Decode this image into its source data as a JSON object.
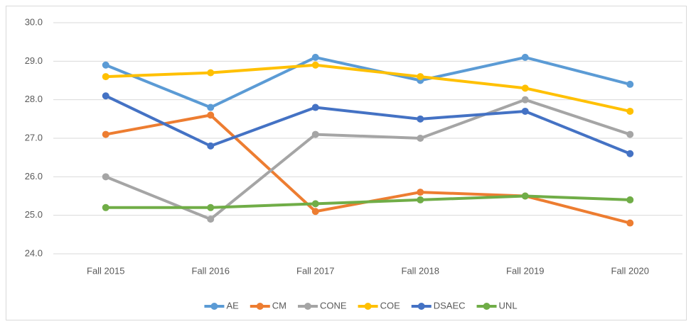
{
  "chart_data": {
    "type": "line",
    "categories": [
      "Fall 2015",
      "Fall 2016",
      "Fall 2017",
      "Fall 2018",
      "Fall 2019",
      "Fall 2020"
    ],
    "series": [
      {
        "name": "AE",
        "color": "#5B9BD5",
        "values": [
          28.9,
          27.8,
          29.1,
          28.5,
          29.1,
          28.4
        ]
      },
      {
        "name": "CM",
        "color": "#ED7D31",
        "values": [
          27.1,
          27.6,
          25.1,
          25.6,
          25.5,
          24.8
        ]
      },
      {
        "name": "CONE",
        "color": "#A5A5A5",
        "values": [
          26.0,
          24.9,
          27.1,
          27.0,
          28.0,
          27.1
        ]
      },
      {
        "name": "COE",
        "color": "#FFC000",
        "values": [
          28.6,
          28.7,
          28.9,
          28.6,
          28.3,
          27.7
        ]
      },
      {
        "name": "DSAEC",
        "color": "#4472C4",
        "values": [
          28.1,
          26.8,
          27.8,
          27.5,
          27.7,
          26.6
        ]
      },
      {
        "name": "UNL",
        "color": "#70AD47",
        "values": [
          25.2,
          25.2,
          25.3,
          25.4,
          25.5,
          25.4
        ]
      }
    ],
    "ylim": [
      24,
      30
    ],
    "yticks": [
      {
        "value": 24,
        "label": "24.0"
      },
      {
        "value": 25,
        "label": "25.0"
      },
      {
        "value": 26,
        "label": "26.0"
      },
      {
        "value": 27,
        "label": "27.0"
      },
      {
        "value": 28,
        "label": "28.0"
      },
      {
        "value": 29,
        "label": "29.0"
      },
      {
        "value": 30,
        "label": "30.0"
      }
    ],
    "grid": true,
    "legend": "bottom"
  }
}
